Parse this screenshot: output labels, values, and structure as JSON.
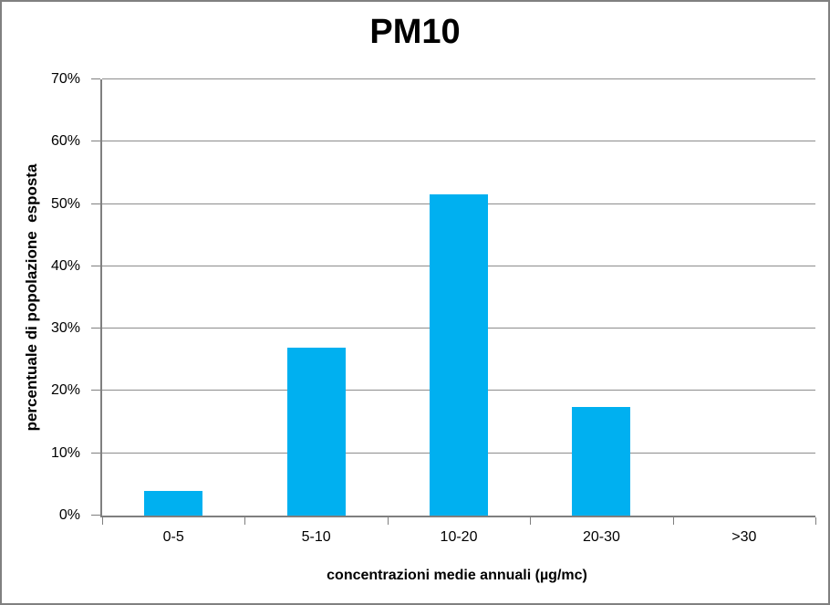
{
  "page": {
    "background": "#ffffff",
    "border_color": "#808080"
  },
  "chart_data": {
    "type": "bar",
    "title": "PM10",
    "categories": [
      "0-5",
      "5-10",
      "10-20",
      "20-30",
      ">30"
    ],
    "values": [
      4,
      27,
      51.5,
      17.5,
      0
    ],
    "xlabel": "concentrazioni medie annuali (µg/mc)",
    "ylabel": "percentuale di popolazione  esposta",
    "ylim": [
      0,
      70
    ],
    "ytick_step": 10,
    "ytick_suffix": "%",
    "grid": true,
    "legend": false,
    "bar_color": "#00B0F0",
    "gridline_color": "#8C8C8C",
    "axis_color": "#7F7F7F"
  }
}
